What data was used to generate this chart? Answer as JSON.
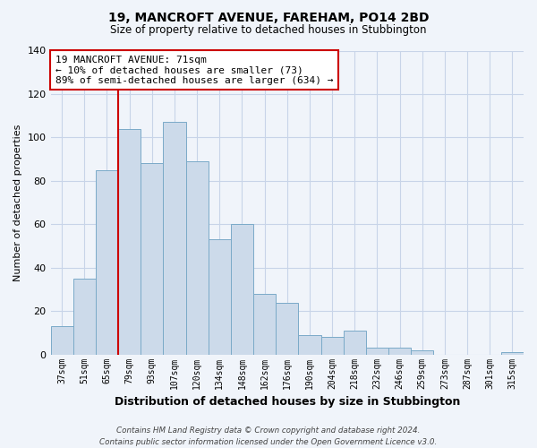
{
  "title": "19, MANCROFT AVENUE, FAREHAM, PO14 2BD",
  "subtitle": "Size of property relative to detached houses in Stubbington",
  "xlabel": "Distribution of detached houses by size in Stubbington",
  "ylabel": "Number of detached properties",
  "categories": [
    "37sqm",
    "51sqm",
    "65sqm",
    "79sqm",
    "93sqm",
    "107sqm",
    "120sqm",
    "134sqm",
    "148sqm",
    "162sqm",
    "176sqm",
    "190sqm",
    "204sqm",
    "218sqm",
    "232sqm",
    "246sqm",
    "259sqm",
    "273sqm",
    "287sqm",
    "301sqm",
    "315sqm"
  ],
  "values": [
    13,
    35,
    85,
    104,
    88,
    107,
    89,
    53,
    60,
    28,
    24,
    9,
    8,
    11,
    3,
    3,
    2,
    0,
    0,
    0,
    1
  ],
  "bar_color": "#ccdaea",
  "bar_edge_color": "#7aaac8",
  "vline_color": "#cc0000",
  "annotation_line1": "19 MANCROFT AVENUE: 71sqm",
  "annotation_line2": "← 10% of detached houses are smaller (73)",
  "annotation_line3": "89% of semi-detached houses are larger (634) →",
  "annotation_box_color": "white",
  "annotation_box_edge_color": "#cc0000",
  "ylim": [
    0,
    140
  ],
  "yticks": [
    0,
    20,
    40,
    60,
    80,
    100,
    120,
    140
  ],
  "footer_line1": "Contains HM Land Registry data © Crown copyright and database right 2024.",
  "footer_line2": "Contains public sector information licensed under the Open Government Licence v3.0.",
  "bg_color": "#f0f4fa",
  "grid_color": "#c8d4e8"
}
